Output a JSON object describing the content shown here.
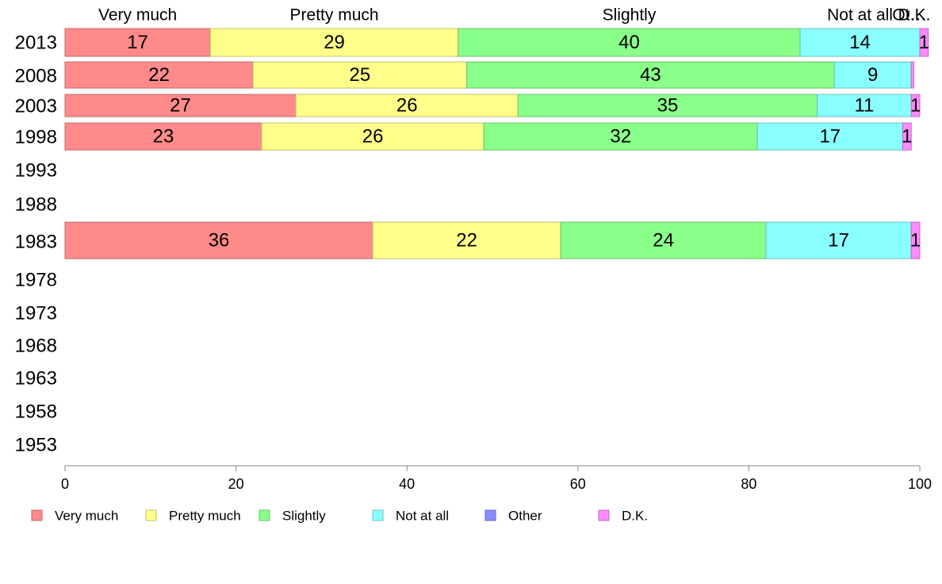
{
  "chart_data": {
    "type": "bar",
    "orientation": "horizontal",
    "stacked": true,
    "title": "",
    "xlabel": "",
    "ylabel": "",
    "xlim": [
      0,
      100
    ],
    "xticks": [
      0,
      20,
      40,
      60,
      80,
      100
    ],
    "categories": [
      "2013",
      "2008",
      "2003",
      "1998",
      "1993",
      "1988",
      "1983",
      "1978",
      "1973",
      "1968",
      "1963",
      "1958",
      "1953"
    ],
    "top_labels": [
      "Very much",
      "Pretty much",
      "Slightly",
      "Not at all",
      "Ot…",
      "D.K."
    ],
    "legend_position": "bottom",
    "series": [
      {
        "name": "Very much",
        "color": "#ff8a8a",
        "border": "#c06a6a",
        "values": [
          17,
          22,
          27,
          23,
          null,
          null,
          36,
          null,
          null,
          null,
          null,
          null,
          null
        ],
        "data_labels": [
          "17",
          "22",
          "27",
          "23",
          null,
          null,
          "36",
          null,
          null,
          null,
          null,
          null,
          null
        ]
      },
      {
        "name": "Pretty much",
        "color": "#ffff8a",
        "border": "#c0c06a",
        "values": [
          29,
          25,
          26,
          26,
          null,
          null,
          22,
          null,
          null,
          null,
          null,
          null,
          null
        ],
        "data_labels": [
          "29",
          "25",
          "26",
          "26",
          null,
          null,
          "22",
          null,
          null,
          null,
          null,
          null,
          null
        ]
      },
      {
        "name": "Slightly",
        "color": "#8aff8a",
        "border": "#6ac06a",
        "values": [
          40,
          43,
          35,
          32,
          null,
          null,
          24,
          null,
          null,
          null,
          null,
          null,
          null
        ],
        "data_labels": [
          "40",
          "43",
          "35",
          "32",
          null,
          null,
          "24",
          null,
          null,
          null,
          null,
          null,
          null
        ]
      },
      {
        "name": "Not at all",
        "color": "#8affff",
        "border": "#6ac0c0",
        "values": [
          14,
          9,
          11,
          17,
          null,
          null,
          17,
          null,
          null,
          null,
          null,
          null,
          null
        ],
        "data_labels": [
          "14",
          "9",
          "11",
          "17",
          null,
          null,
          "17",
          null,
          null,
          null,
          null,
          null,
          null
        ]
      },
      {
        "name": "Other",
        "color": "#8a8aff",
        "border": "#6a6ac0",
        "values": [
          0,
          0,
          0,
          0,
          null,
          null,
          0,
          null,
          null,
          null,
          null,
          null,
          null
        ],
        "data_labels": [
          null,
          null,
          null,
          null,
          null,
          null,
          null,
          null,
          null,
          null,
          null,
          null,
          null
        ]
      },
      {
        "name": "D.K.",
        "color": "#ff8aff",
        "border": "#c06ac0",
        "values": [
          1,
          0.3,
          1,
          1,
          null,
          null,
          1,
          null,
          null,
          null,
          null,
          null,
          null
        ],
        "data_labels": [
          "1",
          null,
          "1",
          "1",
          null,
          null,
          "1",
          null,
          null,
          null,
          null,
          null,
          null
        ]
      }
    ]
  }
}
